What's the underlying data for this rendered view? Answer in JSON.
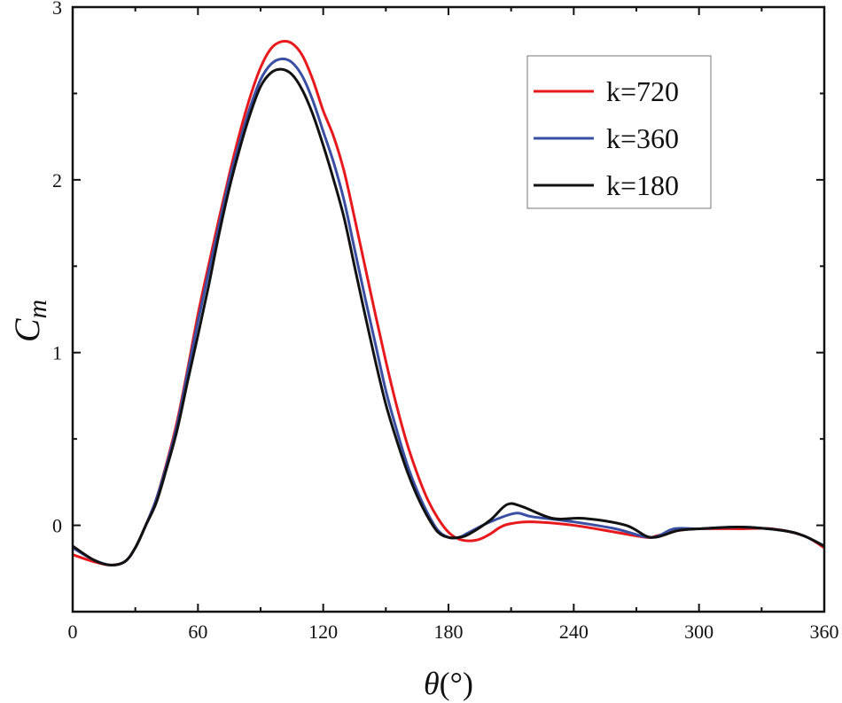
{
  "chart_data": {
    "type": "line",
    "title": "",
    "xlabel": "θ(°)",
    "ylabel": "C_m",
    "ylabel_main": "C",
    "ylabel_sub": "m",
    "xlabel_main": "θ",
    "xlabel_unit": "(°)",
    "xlim": [
      0,
      360
    ],
    "ylim": [
      -0.5,
      3
    ],
    "xticks": [
      0,
      60,
      120,
      180,
      240,
      300,
      360
    ],
    "yticks": [
      0,
      1,
      2,
      3
    ],
    "grid": false,
    "legend_position": "top-right",
    "series": [
      {
        "name": "k=720",
        "color": "#e8191c",
        "x": [
          0,
          10,
          18,
          25,
          30,
          35,
          40,
          45,
          50,
          55,
          60,
          65,
          70,
          75,
          80,
          85,
          90,
          95,
          100,
          105,
          110,
          115,
          120,
          125,
          130,
          135,
          140,
          145,
          150,
          155,
          160,
          165,
          170,
          175,
          180,
          185,
          190,
          195,
          200,
          205,
          210,
          220,
          240,
          260,
          275,
          280,
          290,
          300,
          320,
          335,
          350,
          360
        ],
        "y": [
          -0.17,
          -0.21,
          -0.23,
          -0.21,
          -0.13,
          0.0,
          0.15,
          0.36,
          0.6,
          0.9,
          1.22,
          1.5,
          1.77,
          2.03,
          2.27,
          2.48,
          2.65,
          2.76,
          2.8,
          2.79,
          2.72,
          2.58,
          2.4,
          2.25,
          2.05,
          1.78,
          1.5,
          1.22,
          0.95,
          0.7,
          0.48,
          0.3,
          0.15,
          0.04,
          -0.04,
          -0.08,
          -0.09,
          -0.08,
          -0.05,
          -0.01,
          0.01,
          0.02,
          0.0,
          -0.04,
          -0.07,
          -0.06,
          -0.03,
          -0.02,
          -0.02,
          -0.02,
          -0.06,
          -0.13
        ]
      },
      {
        "name": "k=360",
        "color": "#3a4fa3",
        "x": [
          0,
          10,
          18,
          25,
          30,
          35,
          40,
          45,
          50,
          55,
          60,
          65,
          70,
          75,
          80,
          85,
          90,
          95,
          100,
          105,
          110,
          115,
          120,
          125,
          130,
          135,
          140,
          145,
          150,
          155,
          160,
          165,
          170,
          175,
          180,
          185,
          190,
          200,
          212,
          220,
          240,
          260,
          277,
          288,
          300,
          320,
          340,
          350,
          360
        ],
        "y": [
          -0.13,
          -0.2,
          -0.23,
          -0.21,
          -0.13,
          0.0,
          0.15,
          0.35,
          0.58,
          0.88,
          1.18,
          1.46,
          1.73,
          2.0,
          2.22,
          2.42,
          2.58,
          2.67,
          2.7,
          2.68,
          2.6,
          2.46,
          2.28,
          2.1,
          1.88,
          1.6,
          1.32,
          1.05,
          0.78,
          0.56,
          0.36,
          0.2,
          0.07,
          -0.03,
          -0.07,
          -0.07,
          -0.04,
          0.02,
          0.07,
          0.05,
          0.02,
          -0.02,
          -0.07,
          -0.02,
          -0.02,
          -0.01,
          -0.03,
          -0.06,
          -0.12
        ]
      },
      {
        "name": "k=180",
        "color": "#111111",
        "x": [
          0,
          10,
          18,
          25,
          30,
          35,
          40,
          45,
          50,
          55,
          60,
          65,
          70,
          75,
          80,
          85,
          90,
          95,
          100,
          105,
          110,
          115,
          120,
          125,
          130,
          135,
          140,
          145,
          150,
          155,
          160,
          165,
          170,
          175,
          180,
          185,
          190,
          200,
          208,
          215,
          230,
          245,
          265,
          277,
          290,
          300,
          320,
          340,
          350,
          360
        ],
        "y": [
          -0.12,
          -0.2,
          -0.23,
          -0.21,
          -0.13,
          0.0,
          0.13,
          0.33,
          0.55,
          0.83,
          1.1,
          1.38,
          1.68,
          1.95,
          2.18,
          2.38,
          2.54,
          2.62,
          2.64,
          2.61,
          2.52,
          2.38,
          2.2,
          2.0,
          1.78,
          1.5,
          1.22,
          0.95,
          0.7,
          0.5,
          0.32,
          0.17,
          0.05,
          -0.04,
          -0.07,
          -0.07,
          -0.05,
          0.03,
          0.12,
          0.11,
          0.04,
          0.04,
          0.0,
          -0.07,
          -0.03,
          -0.02,
          -0.01,
          -0.03,
          -0.06,
          -0.12
        ]
      }
    ]
  }
}
